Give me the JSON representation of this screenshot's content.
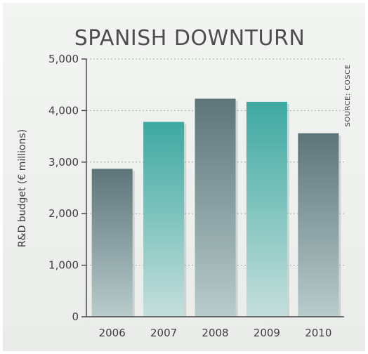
{
  "colors": {
    "dark_bar_top": "#5d7479",
    "dark_bar_bottom": "#b8cccc",
    "teal_bar_top": "#3da9a1",
    "teal_bar_bottom": "#c5dfdc",
    "axis": "#4a4a4a",
    "grid": "#a8aaa8"
  },
  "chart_data": {
    "type": "bar",
    "title": "SPANISH DOWNTURN",
    "ylabel": "R&D budget (€ millions)",
    "xlabel": "",
    "source": "SOURCE: COSCE",
    "ylim": [
      0,
      5000
    ],
    "yticks": [
      0,
      1000,
      2000,
      3000,
      4000,
      5000
    ],
    "ytick_labels": [
      "0",
      "1,000",
      "2,000",
      "3,000",
      "4,000",
      "5,000"
    ],
    "categories": [
      "2006",
      "2007",
      "2008",
      "2009",
      "2010"
    ],
    "values": [
      2870,
      3780,
      4230,
      4170,
      3560
    ],
    "bar_colors": [
      "dark",
      "teal",
      "dark",
      "teal",
      "dark"
    ],
    "grid": true,
    "grid_style": "dotted"
  }
}
